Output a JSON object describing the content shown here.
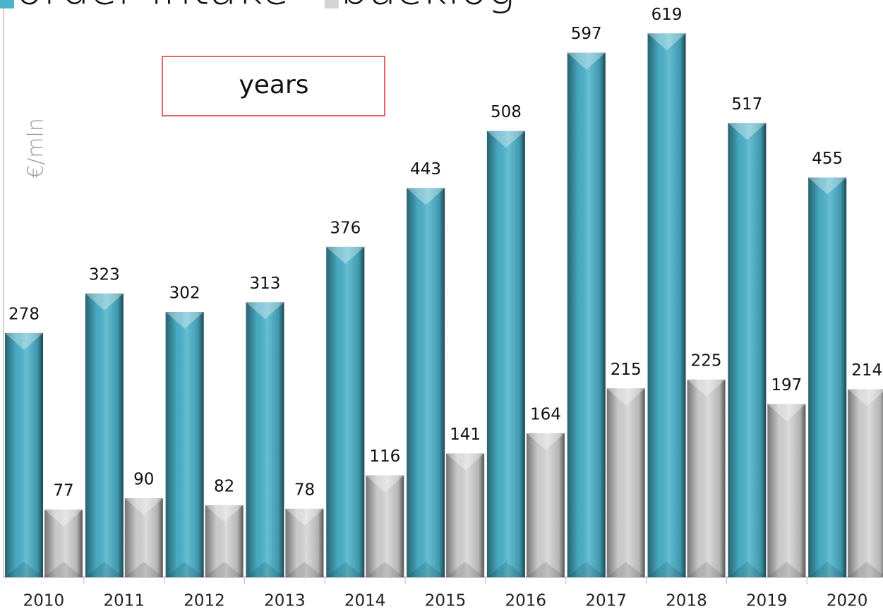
{
  "chart_data": {
    "type": "bar",
    "y_label": "€/mln",
    "annotation": "years",
    "categories": [
      "2010",
      "2011",
      "2012",
      "2013",
      "2014",
      "2015",
      "2016",
      "2017",
      "2018",
      "2019",
      "2020"
    ],
    "series": [
      {
        "name": "order intake",
        "color": "#4bb3cc",
        "values": [
          278,
          323,
          302,
          313,
          376,
          443,
          508,
          597,
          619,
          517,
          455
        ]
      },
      {
        "name": "backlog",
        "color": "#d4d4d4",
        "values": [
          77,
          90,
          82,
          78,
          116,
          141,
          164,
          215,
          225,
          197,
          214
        ]
      }
    ],
    "ylim": [
      0,
      657
    ],
    "legend": "top"
  }
}
